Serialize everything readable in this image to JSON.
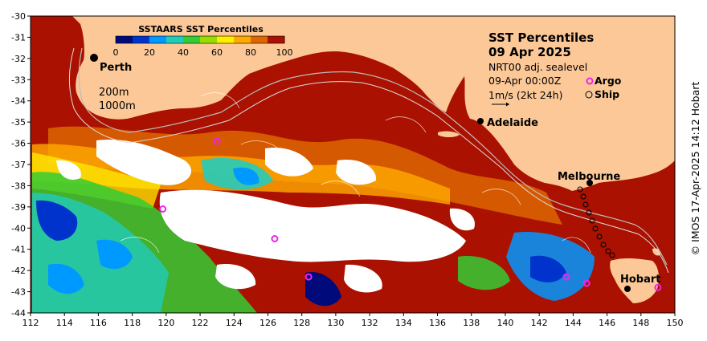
{
  "title": "SST Percentiles",
  "date": "09 Apr 2025",
  "product": "NRT00 adj. sealevel",
  "timestamp": "09-Apr 00:00Z",
  "argo_label": "Argo",
  "ship_label": "Ship",
  "velocity_scale": "1m/s (2kt 24h)",
  "colorbar": {
    "title": "SSTAARS SST Percentiles",
    "ticks": [
      "0",
      "20",
      "40",
      "60",
      "80",
      "100"
    ],
    "colors": [
      "#000a7a",
      "#0033cc",
      "#0099ff",
      "#22ccbb",
      "#33cc33",
      "#99dd00",
      "#ffee00",
      "#ffaa00",
      "#dd6600",
      "#aa1100"
    ]
  },
  "contour_legend": [
    "200m",
    "1000m"
  ],
  "cities": [
    "Perth",
    "Adelaide",
    "Melbourne",
    "Hobart"
  ],
  "x_axis": [
    "112",
    "114",
    "116",
    "118",
    "120",
    "122",
    "124",
    "126",
    "128",
    "130",
    "132",
    "134",
    "136",
    "138",
    "140",
    "142",
    "144",
    "146",
    "148",
    "150"
  ],
  "y_axis": [
    "-30",
    "-31",
    "-32",
    "-33",
    "-34",
    "-35",
    "-36",
    "-37",
    "-38",
    "-39",
    "-40",
    "-41",
    "-42",
    "-43",
    "-44"
  ],
  "credit": "© IMOS 17-Apr-2025 14:12 Hobart",
  "colors": {
    "land": "#fcc898",
    "ocean_high": "#aa1100",
    "cloud": "#ffffff",
    "argo": "#ee22ee"
  },
  "argo_floats": [
    {
      "lon": 123.0,
      "lat": -35.9
    },
    {
      "lon": 119.8,
      "lat": -39.1
    },
    {
      "lon": 126.4,
      "lat": -40.5
    },
    {
      "lon": 128.4,
      "lat": -42.3
    },
    {
      "lon": 143.6,
      "lat": -42.3
    },
    {
      "lon": 144.8,
      "lat": -42.6
    },
    {
      "lon": 149.0,
      "lat": -42.8
    }
  ]
}
